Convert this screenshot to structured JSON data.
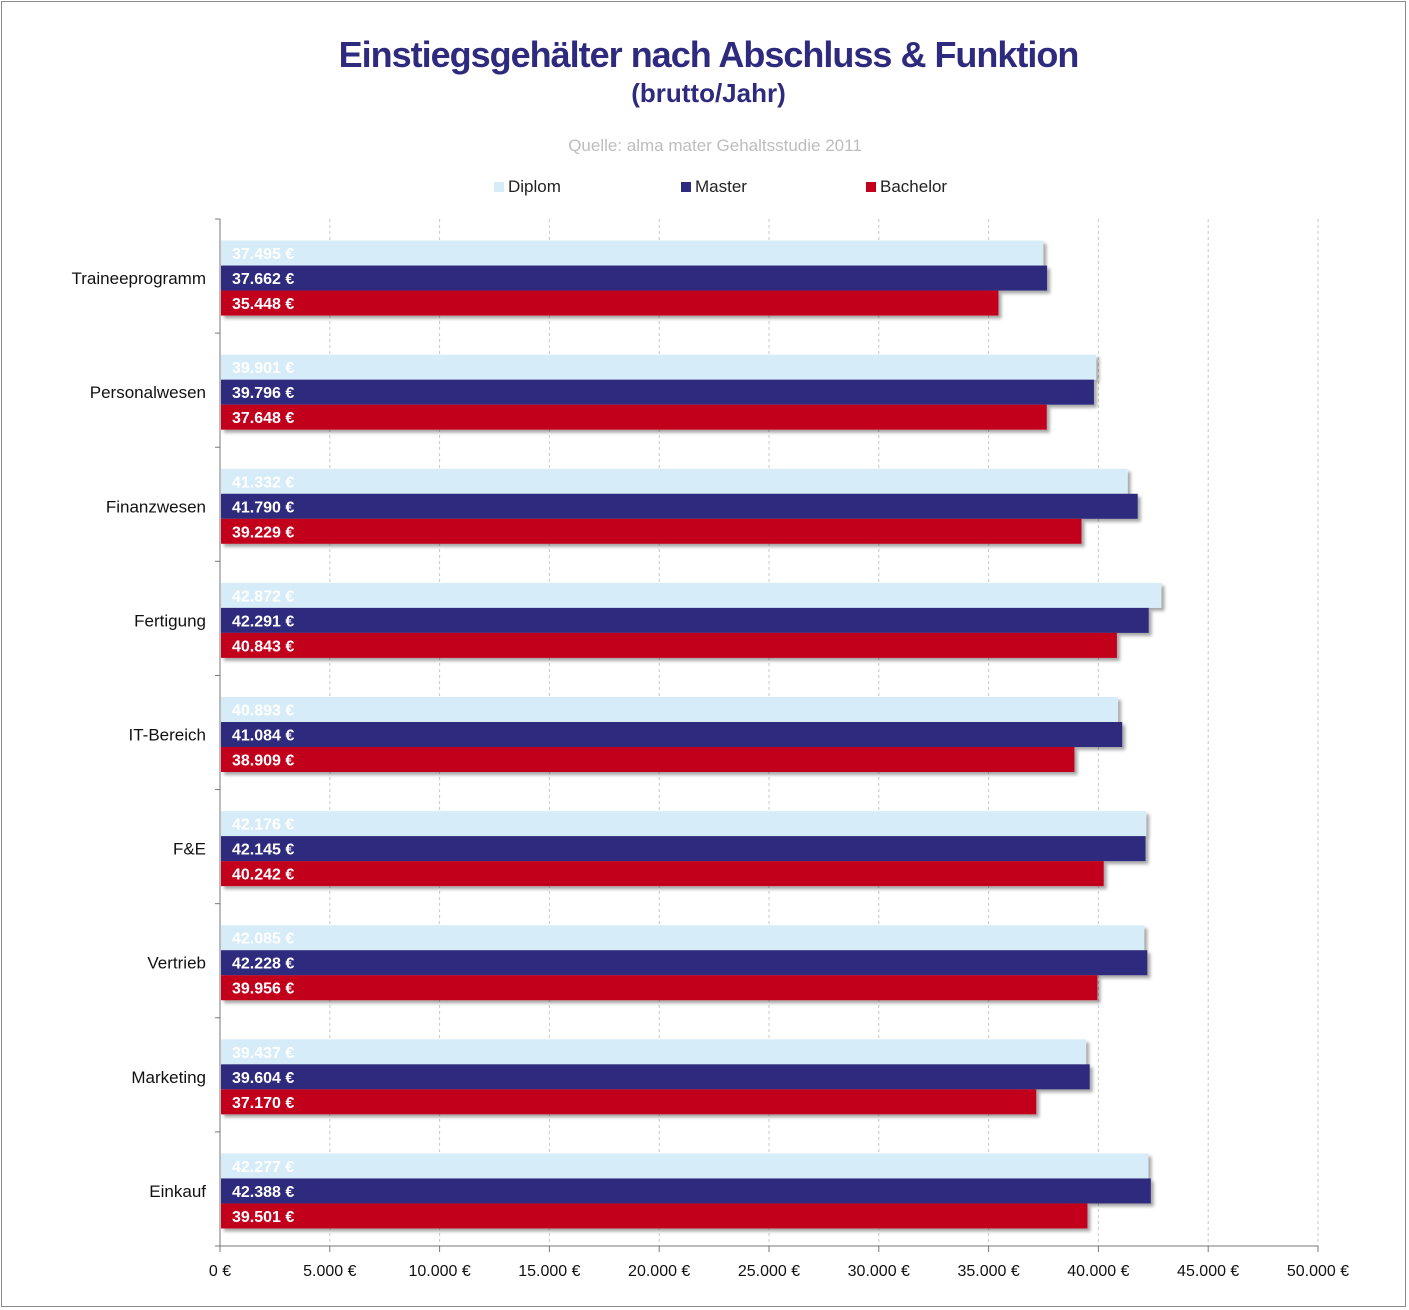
{
  "title": "Einstiegsgehälter nach Abschluss & Funktion",
  "subtitle": "(brutto/Jahr)",
  "source": "Quelle: alma mater Gehaltsstudie 2011",
  "colors": {
    "Diplom": "#d6ecf8",
    "Master": "#2e2a7e",
    "Bachelor": "#c3001e",
    "diplom_label": "#ffffff",
    "master_label": "#ffffff",
    "bachelor_label": "#ffffff"
  },
  "chart_data": {
    "type": "bar",
    "orientation": "horizontal",
    "title": "Einstiegsgehälter nach Abschluss & Funktion",
    "subtitle": "(brutto/Jahr)",
    "categories": [
      "Traineeprogramm",
      "Personalwesen",
      "Finanzwesen",
      "Fertigung",
      "IT-Bereich",
      "F&E",
      "Vertrieb",
      "Marketing",
      "Einkauf"
    ],
    "series": [
      {
        "name": "Diplom",
        "values": [
          37495,
          39901,
          41332,
          42872,
          40893,
          42176,
          42085,
          39437,
          42277
        ],
        "labels": [
          "37.495 €",
          "39.901 €",
          "41.332 €",
          "42.872 €",
          "40.893 €",
          "42.176 €",
          "42.085 €",
          "39.437 €",
          "42.277 €"
        ]
      },
      {
        "name": "Master",
        "values": [
          37662,
          39796,
          41790,
          42291,
          41084,
          42145,
          42228,
          39604,
          42388
        ],
        "labels": [
          "37.662 €",
          "39.796 €",
          "41.790 €",
          "42.291 €",
          "41.084 €",
          "42.145 €",
          "42.228 €",
          "39.604 €",
          "42.388 €"
        ]
      },
      {
        "name": "Bachelor",
        "values": [
          35448,
          37648,
          39229,
          40843,
          38909,
          40242,
          39956,
          37170,
          39501
        ],
        "labels": [
          "35.448 €",
          "37.648 €",
          "39.229 €",
          "40.843 €",
          "38.909 €",
          "40.242 €",
          "39.956 €",
          "37.170 €",
          "39.501 €"
        ]
      }
    ],
    "xlim": [
      0,
      50000
    ],
    "xticks": [
      0,
      5000,
      10000,
      15000,
      20000,
      25000,
      30000,
      35000,
      40000,
      45000,
      50000
    ],
    "xtick_labels": [
      "0 €",
      "5.000 €",
      "10.000 €",
      "15.000 €",
      "20.000 €",
      "25.000 €",
      "30.000 €",
      "35.000 €",
      "40.000 €",
      "45.000 €",
      "50.000 €"
    ],
    "legend_position": "top",
    "grid": "vertical dashed"
  }
}
